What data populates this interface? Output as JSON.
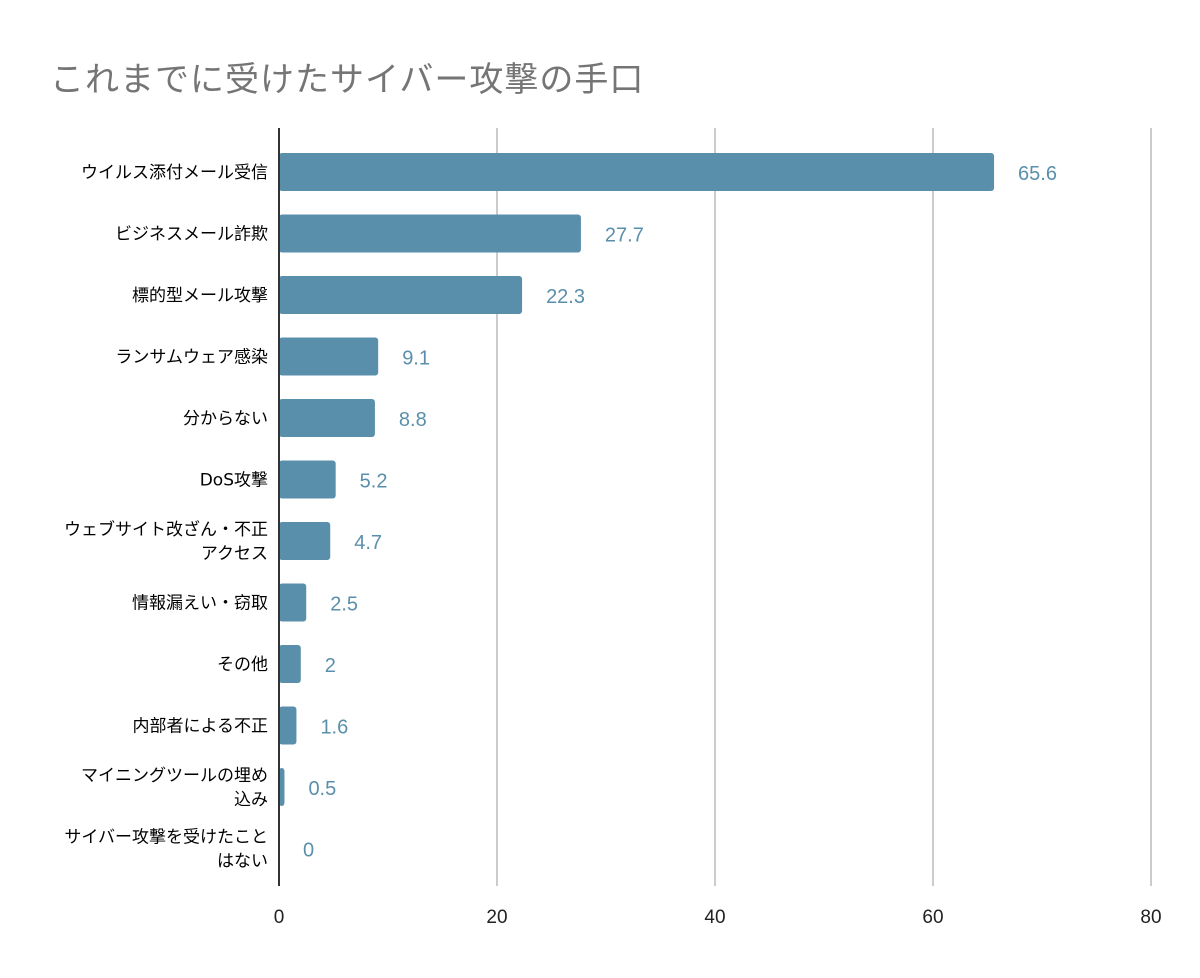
{
  "chart_data": {
    "type": "bar",
    "orientation": "horizontal",
    "title": "これまでに受けたサイバー攻撃の手口",
    "xlabel": "",
    "ylabel": "",
    "xlim": [
      0,
      80
    ],
    "xticks": [
      "0",
      "20",
      "40",
      "60",
      "80"
    ],
    "grid": true,
    "categories": [
      [
        "ウイルス添付メール受信"
      ],
      [
        "ビジネスメール詐欺"
      ],
      [
        "標的型メール攻撃"
      ],
      [
        "ランサムウェア感染"
      ],
      [
        "分からない"
      ],
      [
        "DoS攻撃"
      ],
      [
        "ウェブサイト改ざん・不正",
        "アクセス"
      ],
      [
        "情報漏えい・窃取"
      ],
      [
        "その他"
      ],
      [
        "内部者による不正"
      ],
      [
        "マイニングツールの埋め",
        "込み"
      ],
      [
        "サイバー攻撃を受けたこと",
        "はない"
      ]
    ],
    "values": [
      65.6,
      27.7,
      22.3,
      9.1,
      8.8,
      5.2,
      4.7,
      2.5,
      2,
      1.6,
      0.5,
      0
    ],
    "value_labels": [
      "65.6",
      "27.7",
      "22.3",
      "9.1",
      "8.8",
      "5.2",
      "4.7",
      "2.5",
      "2",
      "1.6",
      "0.5",
      "0"
    ],
    "colors": {
      "bar": "#5a8fab",
      "label": "#5a8fab",
      "grid": "#cccccc",
      "axis": "#333333"
    }
  }
}
